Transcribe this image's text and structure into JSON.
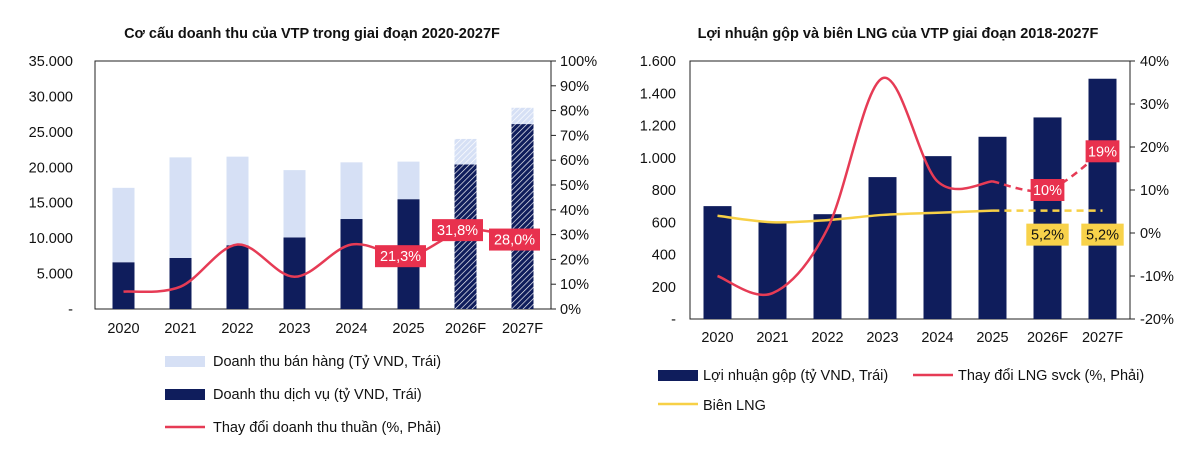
{
  "colors": {
    "navy": "#0f1d5c",
    "light_blue": "#d6e0f5",
    "red": "#e63b55",
    "yellow": "#f7d046",
    "label_red_bg": "#e8314e",
    "label_yellow_bg": "#f8d24a"
  },
  "chart_data": [
    {
      "type": "bar",
      "title": "Cơ cấu doanh thu của VTP trong giai đoạn 2020-2027F",
      "categories": [
        "2020",
        "2021",
        "2022",
        "2023",
        "2024",
        "2025",
        "2026F",
        "2027F"
      ],
      "forecast_categories": [
        "2026F",
        "2027F"
      ],
      "stacked": true,
      "series": [
        {
          "name": "Doanh thu bán hàng (Tỷ VND, Trái)",
          "axis": "left",
          "values": [
            10500,
            14200,
            12500,
            9500,
            8000,
            5300,
            3600,
            2300
          ],
          "color": "#d6e0f5"
        },
        {
          "name": "Doanh thu dịch vụ (tỷ VND, Trái)",
          "axis": "left",
          "values": [
            6600,
            7200,
            9000,
            10100,
            12700,
            15500,
            20400,
            26100
          ],
          "color": "#0f1d5c"
        },
        {
          "name": "Thay đổi doanh thu thuần (%, Phải)",
          "type": "line",
          "axis": "right",
          "values": [
            0.07,
            0.09,
            0.26,
            0.13,
            0.26,
            0.213,
            0.318,
            0.28
          ],
          "color": "#e63b55"
        }
      ],
      "data_labels": [
        {
          "category": "2025",
          "text": "21,3%"
        },
        {
          "category": "2026F",
          "text": "31,8%"
        },
        {
          "category": "2027F",
          "text": "28,0%"
        }
      ],
      "y_left": {
        "ylim": [
          0,
          35000
        ],
        "ticks": [
          "-",
          "5.000",
          "10.000",
          "15.000",
          "20.000",
          "25.000",
          "30.000",
          "35.000"
        ]
      },
      "y_right": {
        "ylim": [
          0,
          1.0
        ],
        "ticks": [
          "0%",
          "10%",
          "20%",
          "30%",
          "40%",
          "50%",
          "60%",
          "70%",
          "80%",
          "90%",
          "100%"
        ]
      },
      "legend_position": "bottom"
    },
    {
      "type": "bar",
      "title": "Lợi nhuận gộp và biên LNG của VTP giai đoạn 2018-2027F",
      "categories": [
        "2020",
        "2021",
        "2022",
        "2023",
        "2024",
        "2025",
        "2026F",
        "2027F"
      ],
      "series": [
        {
          "name": "Lợi nhuận gộp (tỷ VND, Trái)",
          "axis": "left",
          "values": [
            700,
            600,
            650,
            880,
            1010,
            1130,
            1250,
            1490
          ],
          "color": "#0f1d5c"
        },
        {
          "name": "Thay đổi LNG svck (%, Phải)",
          "type": "line",
          "axis": "right",
          "values": [
            -0.1,
            -0.14,
            0.01,
            0.36,
            0.12,
            0.12,
            0.1,
            0.19
          ],
          "color": "#e63b55"
        },
        {
          "name": "Biên LNG",
          "type": "line",
          "axis": "right",
          "values": [
            0.04,
            0.025,
            0.03,
            0.042,
            0.047,
            0.052,
            0.052,
            0.052
          ],
          "color": "#f7d046"
        }
      ],
      "data_labels": [
        {
          "category": "2026F",
          "series": "Thay đổi LNG svck (%, Phải)",
          "text": "10%"
        },
        {
          "category": "2027F",
          "series": "Thay đổi LNG svck (%, Phải)",
          "text": "19%"
        },
        {
          "category": "2026F",
          "series": "Biên LNG",
          "text": "5,2%"
        },
        {
          "category": "2027F",
          "series": "Biên LNG",
          "text": "5,2%"
        }
      ],
      "y_left": {
        "ylim": [
          0,
          1600
        ],
        "ticks": [
          "-",
          "200",
          "400",
          "600",
          "800",
          "1.000",
          "1.200",
          "1.400",
          "1.600"
        ]
      },
      "y_right": {
        "ylim": [
          -0.2,
          0.4
        ],
        "ticks": [
          "-20%",
          "-10%",
          "0%",
          "10%",
          "20%",
          "30%",
          "40%"
        ]
      },
      "legend_position": "bottom"
    }
  ]
}
